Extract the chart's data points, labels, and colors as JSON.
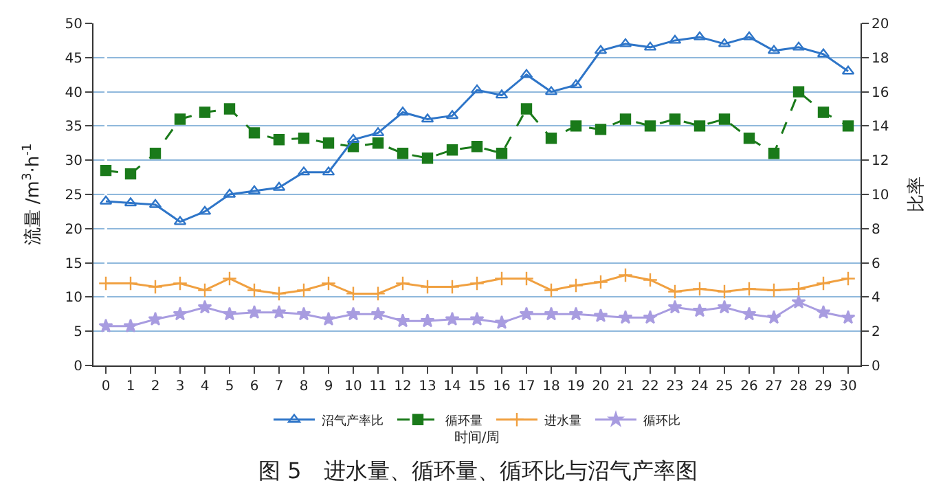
{
  "chart_data": {
    "type": "line",
    "title": "图 5　进水量、循环量、循环比与沼气产率图",
    "xlabel": "时间/周",
    "ylabel": "流量 /m$^{3}$·h$^{-1}$",
    "y2label": "比率",
    "x": [
      0,
      1,
      2,
      3,
      4,
      5,
      6,
      7,
      8,
      9,
      10,
      11,
      12,
      13,
      14,
      15,
      16,
      17,
      18,
      19,
      20,
      21,
      22,
      23,
      24,
      25,
      26,
      27,
      28,
      29,
      30
    ],
    "xlim": [
      -0.5,
      30.5
    ],
    "xticks": [
      0,
      1,
      2,
      3,
      4,
      5,
      6,
      7,
      8,
      9,
      10,
      11,
      12,
      13,
      14,
      15,
      16,
      17,
      18,
      19,
      20,
      21,
      22,
      23,
      24,
      25,
      26,
      27,
      28,
      29,
      30
    ],
    "ylim": [
      0,
      50
    ],
    "yticks": [
      0,
      5,
      10,
      15,
      20,
      25,
      30,
      35,
      40,
      45,
      50
    ],
    "y2lim": [
      0,
      20
    ],
    "y2ticks": [
      0,
      2,
      4,
      6,
      8,
      10,
      12,
      14,
      16,
      18,
      20
    ],
    "grid": "y",
    "legend": "bottom",
    "series": [
      {
        "name": "沼气产率比",
        "color": "#2e75c8",
        "axis": "y2",
        "marker": "triangle",
        "values": [
          9.6,
          9.5,
          9.4,
          8.4,
          9.0,
          10.0,
          10.2,
          10.4,
          11.3,
          11.3,
          13.2,
          13.6,
          14.8,
          14.4,
          14.6,
          16.1,
          15.8,
          17.0,
          16.0,
          16.4,
          18.4,
          18.8,
          18.6,
          19.0,
          19.2,
          18.8,
          19.2,
          18.4,
          18.6,
          18.2,
          17.2
        ]
      },
      {
        "name": "循环量",
        "color": "#1a7a1a",
        "axis": "y",
        "marker": "square",
        "line_style": "dashed",
        "values": [
          28.5,
          28,
          31,
          36,
          37,
          37.5,
          34,
          33,
          33.2,
          32.5,
          32,
          32.5,
          31,
          30.3,
          31.5,
          32,
          31,
          37.5,
          33.2,
          35,
          34.5,
          36,
          35,
          36,
          35,
          36,
          33.2,
          31,
          40,
          37,
          35
        ]
      },
      {
        "name": "进水量",
        "color": "#f0a040",
        "axis": "y",
        "marker": "cross",
        "values": [
          12,
          12,
          11.5,
          12,
          11,
          12.7,
          11,
          10.5,
          11,
          12,
          10.5,
          10.5,
          12,
          11.5,
          11.5,
          12,
          12.7,
          12.7,
          11,
          11.7,
          12.2,
          13.2,
          12.5,
          10.8,
          11.2,
          10.8,
          11.2,
          11,
          11.2,
          12,
          12.7
        ]
      },
      {
        "name": "循环比",
        "color": "#a89ce0",
        "axis": "y2",
        "marker": "star",
        "values": [
          2.3,
          2.3,
          2.7,
          3.0,
          3.4,
          3.0,
          3.1,
          3.1,
          3.0,
          2.7,
          3.0,
          3.0,
          2.6,
          2.6,
          2.7,
          2.7,
          2.5,
          3.0,
          3.0,
          3.0,
          2.9,
          2.8,
          2.8,
          3.4,
          3.2,
          3.4,
          3.0,
          2.8,
          3.7,
          3.1,
          2.8
        ]
      }
    ]
  }
}
